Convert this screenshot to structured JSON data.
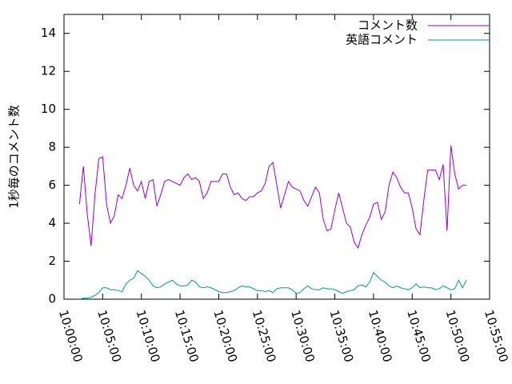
{
  "chart_data": {
    "type": "line",
    "y_label": "1秒毎のコメント数",
    "x": [
      "10:02:00",
      "10:02:30",
      "10:03:00",
      "10:03:30",
      "10:04:00",
      "10:04:30",
      "10:05:00",
      "10:05:30",
      "10:06:00",
      "10:06:30",
      "10:07:00",
      "10:07:30",
      "10:08:00",
      "10:08:30",
      "10:09:00",
      "10:09:30",
      "10:10:00",
      "10:10:30",
      "10:11:00",
      "10:11:30",
      "10:12:00",
      "10:12:30",
      "10:13:00",
      "10:13:30",
      "10:14:00",
      "10:14:30",
      "10:15:00",
      "10:15:30",
      "10:16:00",
      "10:16:30",
      "10:17:00",
      "10:17:30",
      "10:18:00",
      "10:18:30",
      "10:19:00",
      "10:19:30",
      "10:20:00",
      "10:20:30",
      "10:21:00",
      "10:21:30",
      "10:22:00",
      "10:22:30",
      "10:23:00",
      "10:23:30",
      "10:24:00",
      "10:24:30",
      "10:25:00",
      "10:25:30",
      "10:26:00",
      "10:26:30",
      "10:27:00",
      "10:27:30",
      "10:28:00",
      "10:28:30",
      "10:29:00",
      "10:29:30",
      "10:30:00",
      "10:30:30",
      "10:31:00",
      "10:31:30",
      "10:32:00",
      "10:32:30",
      "10:33:00",
      "10:33:30",
      "10:34:00",
      "10:34:30",
      "10:35:00",
      "10:35:30",
      "10:36:00",
      "10:36:30",
      "10:37:00",
      "10:37:30",
      "10:38:00",
      "10:38:30",
      "10:39:00",
      "10:39:30",
      "10:40:00",
      "10:40:30",
      "10:41:00",
      "10:41:30",
      "10:42:00",
      "10:42:30",
      "10:43:00",
      "10:43:30",
      "10:44:00",
      "10:44:30",
      "10:45:00",
      "10:45:30",
      "10:46:00",
      "10:46:30",
      "10:47:00",
      "10:47:30",
      "10:48:00",
      "10:48:30",
      "10:49:00",
      "10:49:30",
      "10:50:00",
      "10:50:30",
      "10:51:00",
      "10:51:30",
      "10:52:00"
    ],
    "series": [
      {
        "name": "コメント数",
        "color": "#9400d3",
        "values": [
          5.0,
          7.0,
          4.5,
          2.8,
          5.5,
          7.4,
          7.5,
          5.0,
          4.0,
          4.4,
          5.5,
          5.3,
          6.0,
          6.9,
          6.0,
          5.7,
          6.2,
          5.3,
          6.2,
          6.3,
          4.9,
          5.5,
          6.2,
          6.3,
          6.2,
          6.1,
          6.0,
          6.4,
          6.6,
          6.3,
          6.4,
          6.2,
          5.3,
          5.6,
          6.2,
          6.2,
          6.2,
          6.6,
          6.6,
          5.9,
          5.5,
          5.6,
          5.3,
          5.2,
          5.4,
          5.4,
          5.6,
          5.7,
          6.1,
          7.0,
          7.2,
          6.0,
          4.8,
          5.5,
          6.2,
          5.9,
          5.8,
          5.7,
          5.2,
          4.9,
          5.4,
          5.9,
          5.6,
          4.2,
          3.6,
          3.7,
          4.7,
          5.6,
          4.8,
          4.0,
          3.8,
          3.0,
          2.7,
          3.4,
          3.9,
          4.3,
          5.0,
          5.1,
          4.2,
          4.6,
          6.0,
          6.7,
          6.4,
          5.9,
          5.6,
          5.6,
          4.8,
          3.7,
          3.4,
          5.2,
          6.8,
          6.8,
          6.8,
          6.3,
          7.1,
          3.6,
          8.1,
          6.6,
          5.8,
          6.0,
          6.0
        ]
      },
      {
        "name": "英語コメント",
        "color": "#009e73",
        "values": [
          0.0,
          0.05,
          0.05,
          0.1,
          0.2,
          0.35,
          0.6,
          0.6,
          0.5,
          0.5,
          0.45,
          0.4,
          0.8,
          1.0,
          1.1,
          1.5,
          1.35,
          1.2,
          1.0,
          0.7,
          0.6,
          0.65,
          0.8,
          0.9,
          1.0,
          0.8,
          0.7,
          0.7,
          0.75,
          1.0,
          0.9,
          0.65,
          0.6,
          0.65,
          0.6,
          0.5,
          0.4,
          0.35,
          0.35,
          0.4,
          0.45,
          0.6,
          0.7,
          0.65,
          0.65,
          0.55,
          0.45,
          0.45,
          0.4,
          0.45,
          0.35,
          0.55,
          0.6,
          0.6,
          0.6,
          0.5,
          0.3,
          0.35,
          0.55,
          0.7,
          0.55,
          0.5,
          0.5,
          0.6,
          0.55,
          0.55,
          0.5,
          0.4,
          0.3,
          0.4,
          0.45,
          0.5,
          0.7,
          0.75,
          0.65,
          0.9,
          1.4,
          1.2,
          1.0,
          0.9,
          0.7,
          0.6,
          0.7,
          0.6,
          0.55,
          0.5,
          0.6,
          0.8,
          0.6,
          0.65,
          0.6,
          0.6,
          0.5,
          0.55,
          0.7,
          0.6,
          0.5,
          0.55,
          1.0,
          0.6,
          1.0
        ]
      }
    ],
    "xlim": [
      "10:00:00",
      "10:55:00"
    ],
    "xticks": [
      "10:00:00",
      "10:05:00",
      "10:10:00",
      "10:15:00",
      "10:20:00",
      "10:25:00",
      "10:30:00",
      "10:35:00",
      "10:40:00",
      "10:45:00",
      "10:50:00",
      "10:55:00"
    ],
    "ylim": [
      0,
      15
    ],
    "yticks": [
      0,
      2,
      4,
      6,
      8,
      10,
      12,
      14
    ],
    "legend": "top-right"
  }
}
